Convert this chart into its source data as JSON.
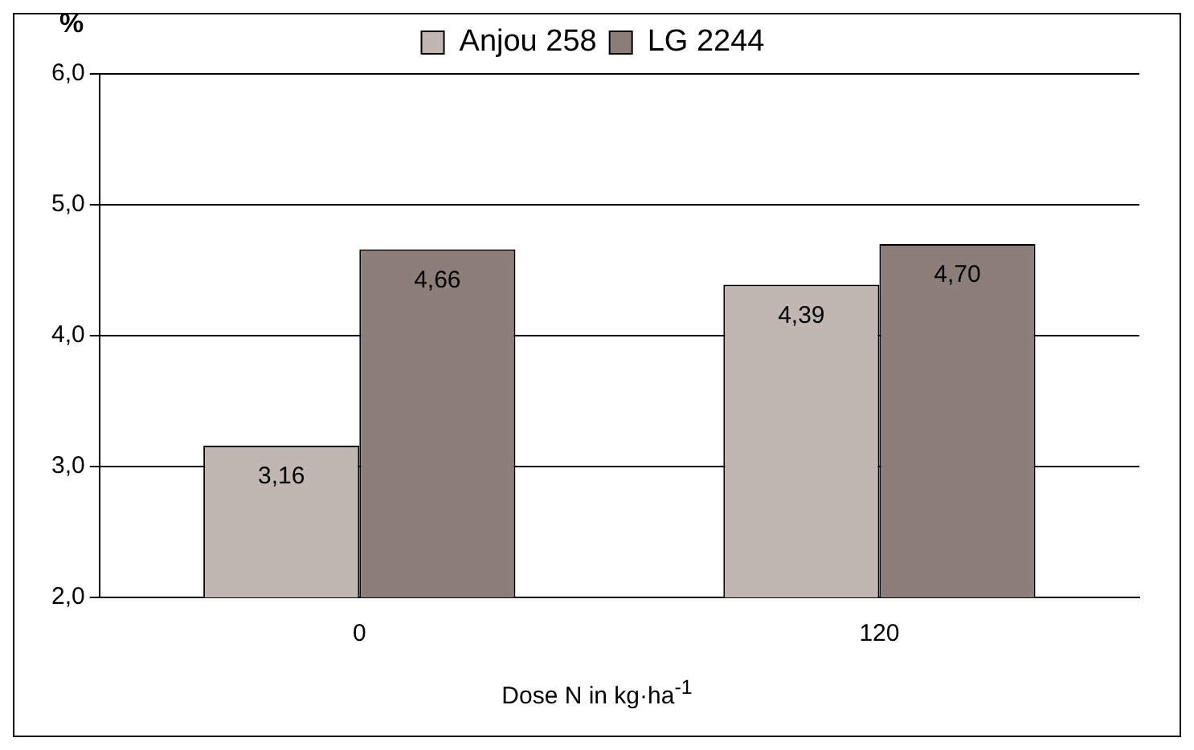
{
  "chart_data": {
    "type": "bar",
    "ylabel": "%",
    "xlabel": "Dose N in kg·ha$^{-1}$",
    "categories": [
      "0",
      "120"
    ],
    "series": [
      {
        "name": "Anjou 258",
        "color": "#c0b7b3",
        "values": [
          3.16,
          4.39
        ],
        "value_labels": [
          "3,16",
          "4,39"
        ]
      },
      {
        "name": "LG 2244",
        "color": "#8c7f7a",
        "values": [
          4.66,
          4.7
        ],
        "value_labels": [
          "4,66",
          "4,70"
        ]
      }
    ],
    "ylim": [
      2,
      6
    ],
    "yticks": [
      {
        "value": 2,
        "label": "2,0"
      },
      {
        "value": 3,
        "label": "3,0"
      },
      {
        "value": 4,
        "label": "4,0"
      },
      {
        "value": 5,
        "label": "5,0"
      },
      {
        "value": 6,
        "label": "6,0"
      }
    ],
    "grid": "y",
    "legend": "top"
  }
}
